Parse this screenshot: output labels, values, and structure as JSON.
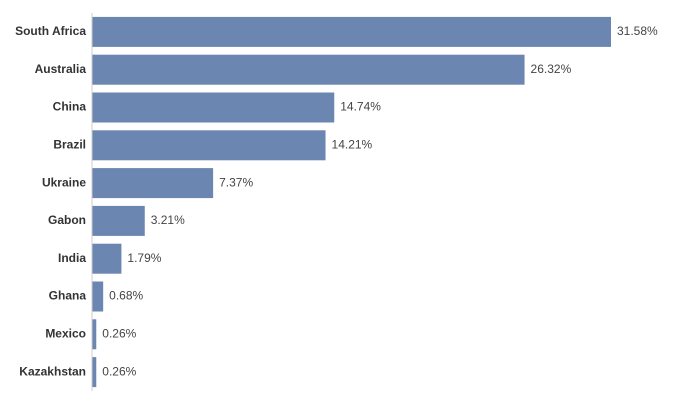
{
  "chart_data": {
    "type": "bar",
    "orientation": "horizontal",
    "categories": [
      "South Africa",
      "Australia",
      "China",
      "Brazil",
      "Ukraine",
      "Gabon",
      "India",
      "Ghana",
      "Mexico",
      "Kazakhstan"
    ],
    "values": [
      31.58,
      26.32,
      14.74,
      14.21,
      7.37,
      3.21,
      1.79,
      0.68,
      0.26,
      0.26
    ],
    "value_labels": [
      "31.58%",
      "26.32%",
      "14.74%",
      "14.21%",
      "7.37%",
      "3.21%",
      "1.79%",
      "0.68%",
      "0.26%",
      "0.26%"
    ],
    "color": "#6a86b1"
  }
}
